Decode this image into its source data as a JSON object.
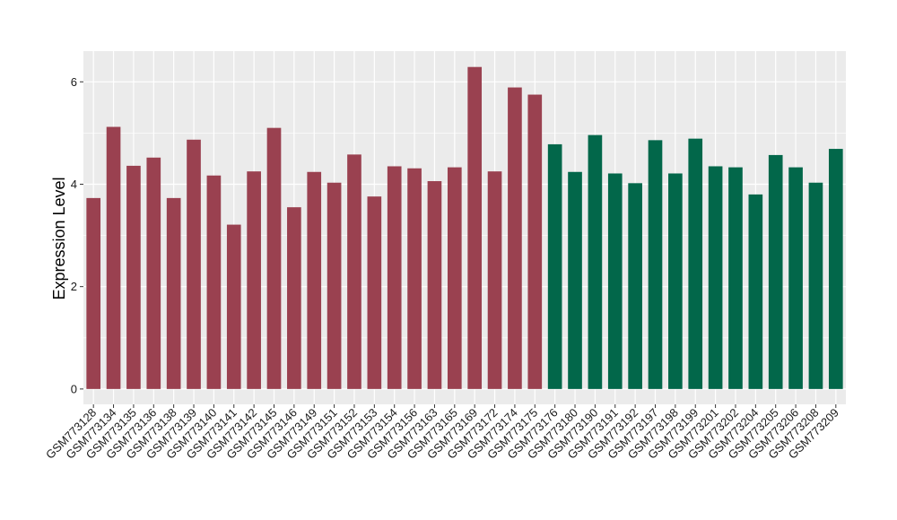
{
  "chart_data": {
    "type": "bar",
    "title": "",
    "xlabel": "",
    "ylabel": "Expression Level",
    "ylim": [
      -0.3,
      6.6
    ],
    "yticks": [
      0,
      2,
      4,
      6
    ],
    "grid": true,
    "background": "#ebebeb",
    "categories": [
      "GSM773128",
      "GSM773134",
      "GSM773135",
      "GSM773136",
      "GSM773138",
      "GSM773139",
      "GSM773140",
      "GSM773141",
      "GSM773142",
      "GSM773145",
      "GSM773146",
      "GSM773149",
      "GSM773151",
      "GSM773152",
      "GSM773153",
      "GSM773154",
      "GSM773156",
      "GSM773163",
      "GSM773165",
      "GSM773169",
      "GSM773172",
      "GSM773174",
      "GSM773175",
      "GSM773176",
      "GSM773180",
      "GSM773190",
      "GSM773191",
      "GSM773192",
      "GSM773197",
      "GSM773198",
      "GSM773199",
      "GSM773201",
      "GSM773202",
      "GSM773204",
      "GSM773205",
      "GSM773206",
      "GSM773208",
      "GSM773209"
    ],
    "values": [
      3.73,
      5.12,
      4.36,
      4.52,
      3.73,
      4.87,
      4.17,
      3.21,
      4.25,
      5.1,
      3.55,
      4.24,
      4.03,
      4.58,
      3.76,
      4.35,
      4.31,
      4.06,
      4.33,
      6.29,
      4.25,
      5.89,
      5.75,
      4.78,
      4.24,
      4.96,
      4.21,
      4.02,
      4.86,
      4.21,
      4.89,
      4.35,
      4.33,
      3.8,
      4.57,
      4.33,
      4.03,
      4.69
    ],
    "group_sizes": [
      23,
      15
    ],
    "colors": [
      "#9a4150",
      "#02674a"
    ]
  }
}
